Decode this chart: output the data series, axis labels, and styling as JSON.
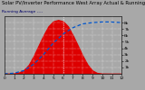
{
  "title": "Solar PV/Inverter Performance West Array Actual & Running Average Power Output",
  "subtitle": "Running Average ----",
  "bg_color": "#a8a8a8",
  "plot_bg_color": "#a8a8a8",
  "fill_color": "#dd0000",
  "line_color": "#0055cc",
  "ylim": [
    0,
    9000
  ],
  "xlim": [
    0,
    144
  ],
  "actual_x": [
    0,
    6,
    12,
    18,
    24,
    30,
    36,
    42,
    48,
    54,
    60,
    66,
    72,
    78,
    84,
    90,
    96,
    102,
    108,
    114,
    120,
    126,
    132,
    138,
    144
  ],
  "actual_y": [
    0,
    0,
    50,
    200,
    600,
    1400,
    2800,
    4400,
    6000,
    7400,
    8200,
    8400,
    8200,
    7400,
    6000,
    4400,
    2800,
    1400,
    500,
    100,
    10,
    0,
    0,
    0,
    0
  ],
  "avg_x": [
    0,
    12,
    24,
    36,
    48,
    60,
    72,
    84,
    96,
    108,
    120,
    130,
    144
  ],
  "avg_y": [
    0,
    100,
    500,
    1500,
    3000,
    4800,
    6200,
    7200,
    7800,
    8000,
    8100,
    8100,
    8000
  ],
  "ytick_vals": [
    1000,
    2000,
    3000,
    4000,
    5000,
    6000,
    7000,
    8000
  ],
  "ytick_labels": [
    "1k",
    "2k",
    "3k",
    "4k",
    "5k",
    "6k",
    "7k",
    "8k"
  ],
  "xtick_vals": [
    0,
    12,
    24,
    36,
    48,
    60,
    72,
    84,
    96,
    108,
    120,
    132,
    144
  ],
  "xtick_labels": [
    "0",
    "1",
    "2",
    "3",
    "4",
    "5",
    "6",
    "7",
    "8",
    "9",
    "10",
    "11",
    "12"
  ],
  "grid_color": "#ffffff",
  "font_size_title": 3.8,
  "font_size_tick": 3.2,
  "vline_x": 72
}
